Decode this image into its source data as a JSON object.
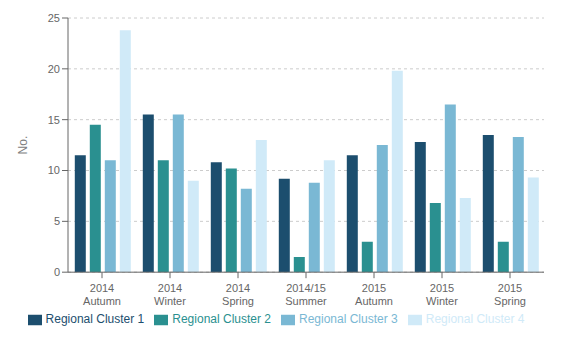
{
  "chart_data": {
    "type": "bar",
    "y_label": "No.",
    "categories": [
      "2014\nAutumn",
      "2014\nWinter",
      "2014\nSpring",
      "2014/15\nSummer",
      "2015\nAutumn",
      "2015\nWinter",
      "2015\nSpring"
    ],
    "series": [
      {
        "name": "Regional Cluster 1",
        "color": "#1c4e6e",
        "values": [
          11.5,
          15.5,
          10.8,
          9.2,
          11.5,
          12.8,
          13.5
        ]
      },
      {
        "name": "Regional Cluster 2",
        "color": "#2a9090",
        "values": [
          14.5,
          11.0,
          10.2,
          1.5,
          3.0,
          6.8,
          3.0
        ]
      },
      {
        "name": "Regional Cluster 3",
        "color": "#7ab8d4",
        "values": [
          11.0,
          15.5,
          8.2,
          8.8,
          12.5,
          16.5,
          13.3
        ]
      },
      {
        "name": "Regional Cluster 4",
        "color": "#d0eaf8",
        "values": [
          23.8,
          9.0,
          13.0,
          11.0,
          19.8,
          7.3,
          9.3
        ]
      }
    ],
    "ylim": [
      0,
      25
    ],
    "yticks": [
      0,
      5,
      10,
      15,
      20,
      25
    ],
    "grid": true,
    "legend": "bottom"
  }
}
